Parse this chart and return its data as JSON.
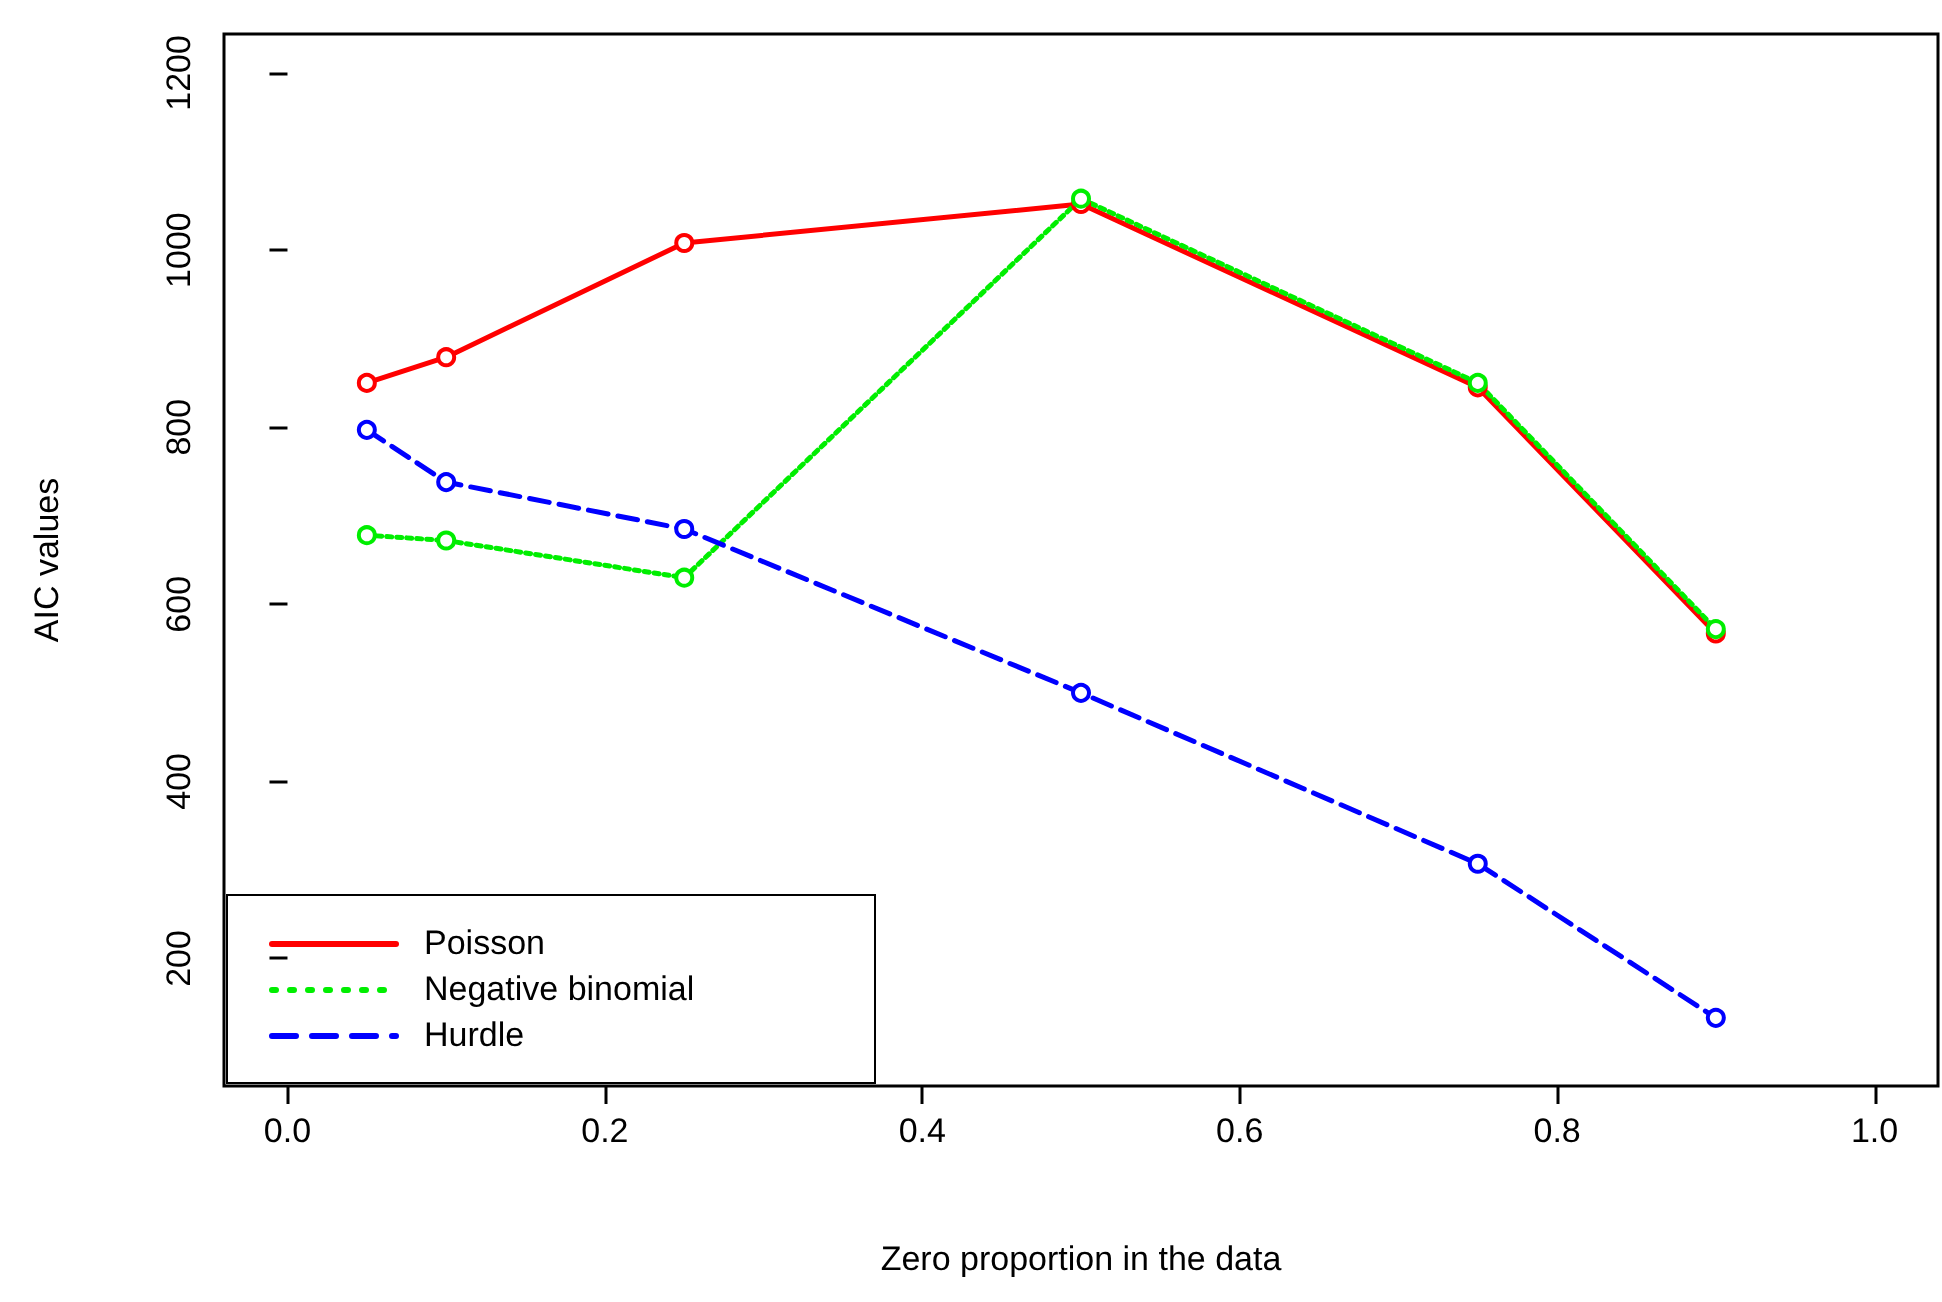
{
  "chart_data": {
    "type": "line",
    "xlabel": "Zero proportion in the data",
    "ylabel": "AIC values",
    "x": [
      0.05,
      0.1,
      0.25,
      0.5,
      0.75,
      0.9
    ],
    "series": [
      {
        "name": "Poisson",
        "color": "#ff0000",
        "line_style": "solid",
        "values": [
          850,
          879,
          1008,
          1052,
          845,
          567
        ]
      },
      {
        "name": "Negative binomial",
        "color": "#00ee00",
        "line_style": "dotted",
        "values": [
          678,
          672,
          630,
          1058,
          850,
          572
        ]
      },
      {
        "name": "Hurdle",
        "color": "#0000ff",
        "line_style": "dashed",
        "values": [
          797,
          738,
          685,
          500,
          307,
          133
        ]
      }
    ],
    "xlim": [
      -0.04,
      1.04
    ],
    "ylim": [
      56,
      1244
    ],
    "xticks": [
      {
        "value": 0,
        "label": "0.0"
      },
      0.2,
      0.4,
      0.6,
      0.8,
      {
        "value": 1,
        "label": "1.0"
      }
    ],
    "yticks": [
      200,
      400,
      600,
      800,
      1000,
      1200
    ],
    "marker": "circle",
    "grid": false,
    "legend": "bottom left"
  }
}
